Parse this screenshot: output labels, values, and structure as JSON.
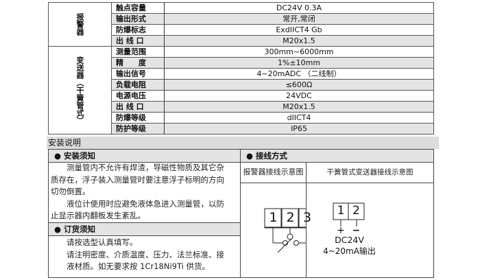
{
  "spec": {
    "alarm_group": "报警器",
    "transmitter_group": "变送器（干簧管式）",
    "rows": [
      {
        "label": "触点容量",
        "value": "DC24V 0.3A"
      },
      {
        "label": "输出形式",
        "value": "常开,常闭"
      },
      {
        "label": "防爆标志",
        "value": "ExdIICT4 Gb"
      },
      {
        "label": "出 线 口",
        "value": "M20x1.5"
      },
      {
        "label": "测量范围",
        "value": "300mm~6000mm"
      },
      {
        "label": "精　　度",
        "value": "1%±10mm"
      },
      {
        "label": "输出信号",
        "value": "4~20mADC （二线制）"
      },
      {
        "label": "负载电阻",
        "value": "≤600Ω"
      },
      {
        "label": "电源电压",
        "value": "24VDC"
      },
      {
        "label": "出 线 口",
        "value": "M20x1.5"
      },
      {
        "label": "防爆等级",
        "value": "dIICT4"
      },
      {
        "label": "防护等级",
        "value": "IP65"
      }
    ]
  },
  "install": {
    "title": "安装说明",
    "notice_title": "● 安装须知",
    "notice_lines": [
      "　　测量管内不允许有焊渣，导磁性物质及其它杂",
      "质存在，浮子装入测量管时要注意浮子标明的方向",
      "切勿倒置。",
      "　　液位计使用时应避免液体急进入测量管，以防",
      "止显示器内翻板发生紊乱。"
    ],
    "order_title": "● 订货须知",
    "order_lines": [
      "　　请按选型认真填写。",
      "　　请注明密度、介质温度、压力、法兰标准、接",
      "　　液材质。如无要求按 1Cr18Ni9Ti 供货。"
    ],
    "wiring_title": "● 接线方式",
    "alarm_diagram_title": "报警器接线示意图",
    "alarm_terminals": [
      "1",
      "2",
      "3"
    ],
    "transmitter_diagram_title": "干簧管式变送器接线示意图",
    "transmitter_terminals": [
      "1",
      "2"
    ],
    "plus": "+",
    "minus": "−",
    "power": "DC24V",
    "output": "4~20mA输出"
  }
}
